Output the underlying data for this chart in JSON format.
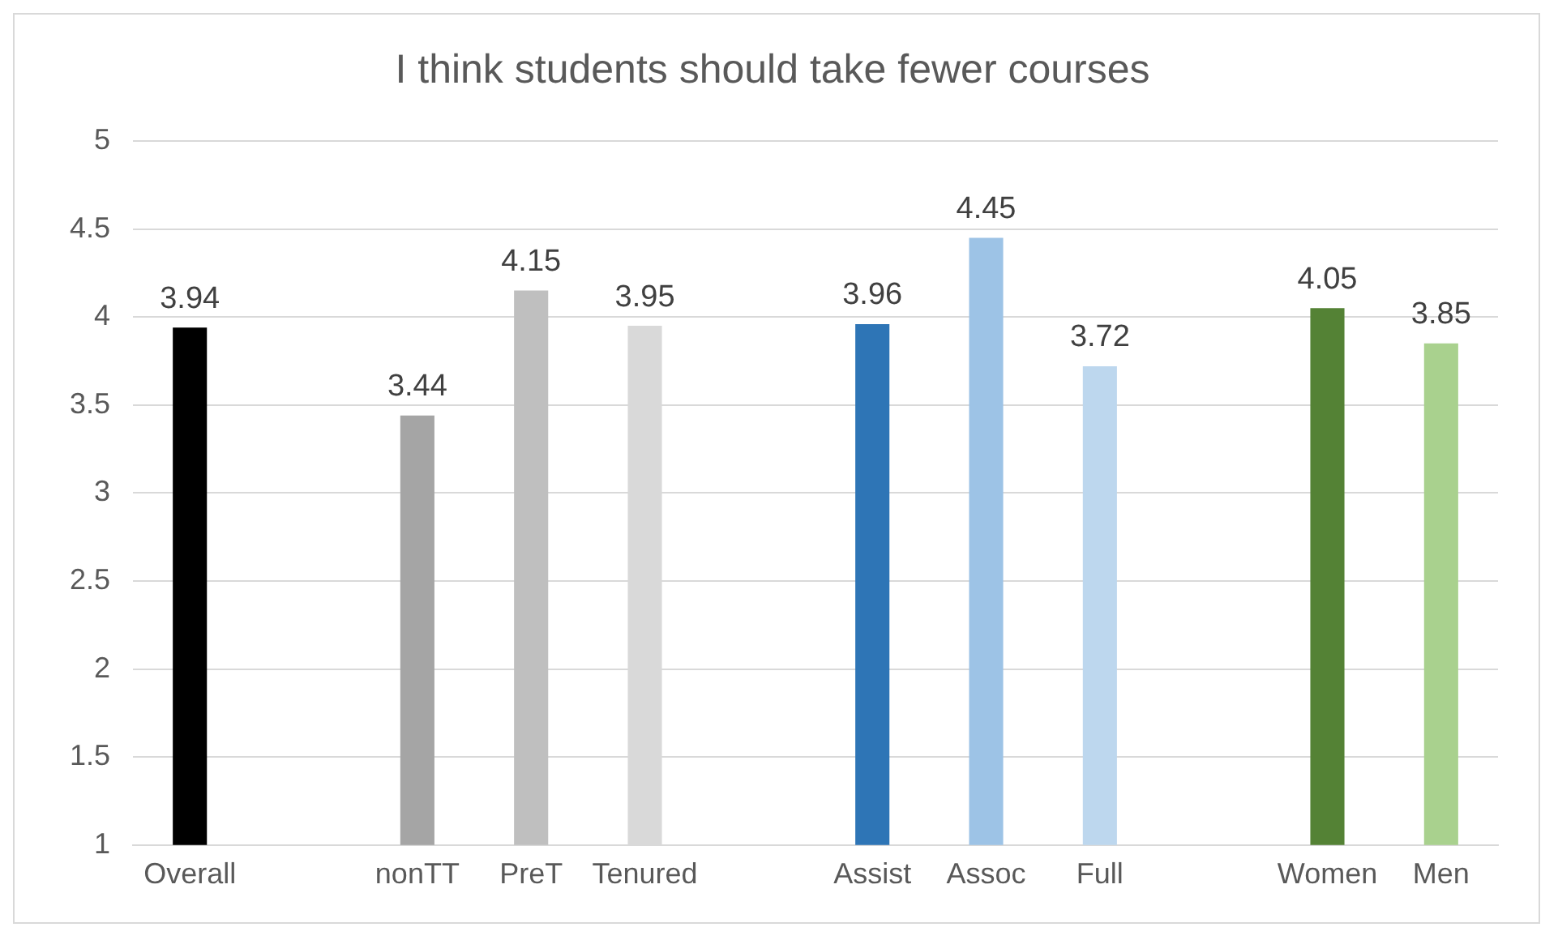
{
  "chart_data": {
    "type": "bar",
    "title": "I think students should take fewer courses",
    "categories": [
      "Overall",
      null,
      "nonTT",
      "PreT",
      "Tenured",
      null,
      "Assist",
      "Assoc",
      "Full",
      null,
      "Women",
      "Men"
    ],
    "values": [
      3.94,
      null,
      3.44,
      4.15,
      3.95,
      null,
      3.96,
      4.45,
      3.72,
      null,
      4.05,
      3.85
    ],
    "colors": [
      "#000000",
      "#a5a5a5",
      "#a5a5a5",
      "#bfbfbf",
      "#d9d9d9",
      "#2e75b6",
      "#2e75b6",
      "#9dc3e6",
      "#bdd7ee",
      "#548235",
      "#548235",
      "#a9d18e"
    ],
    "ylim": [
      1,
      5
    ],
    "yticks": [
      1,
      1.5,
      2,
      2.5,
      3,
      3.5,
      4,
      4.5,
      5
    ],
    "grid": "y",
    "data_labels": true,
    "legend": false
  }
}
